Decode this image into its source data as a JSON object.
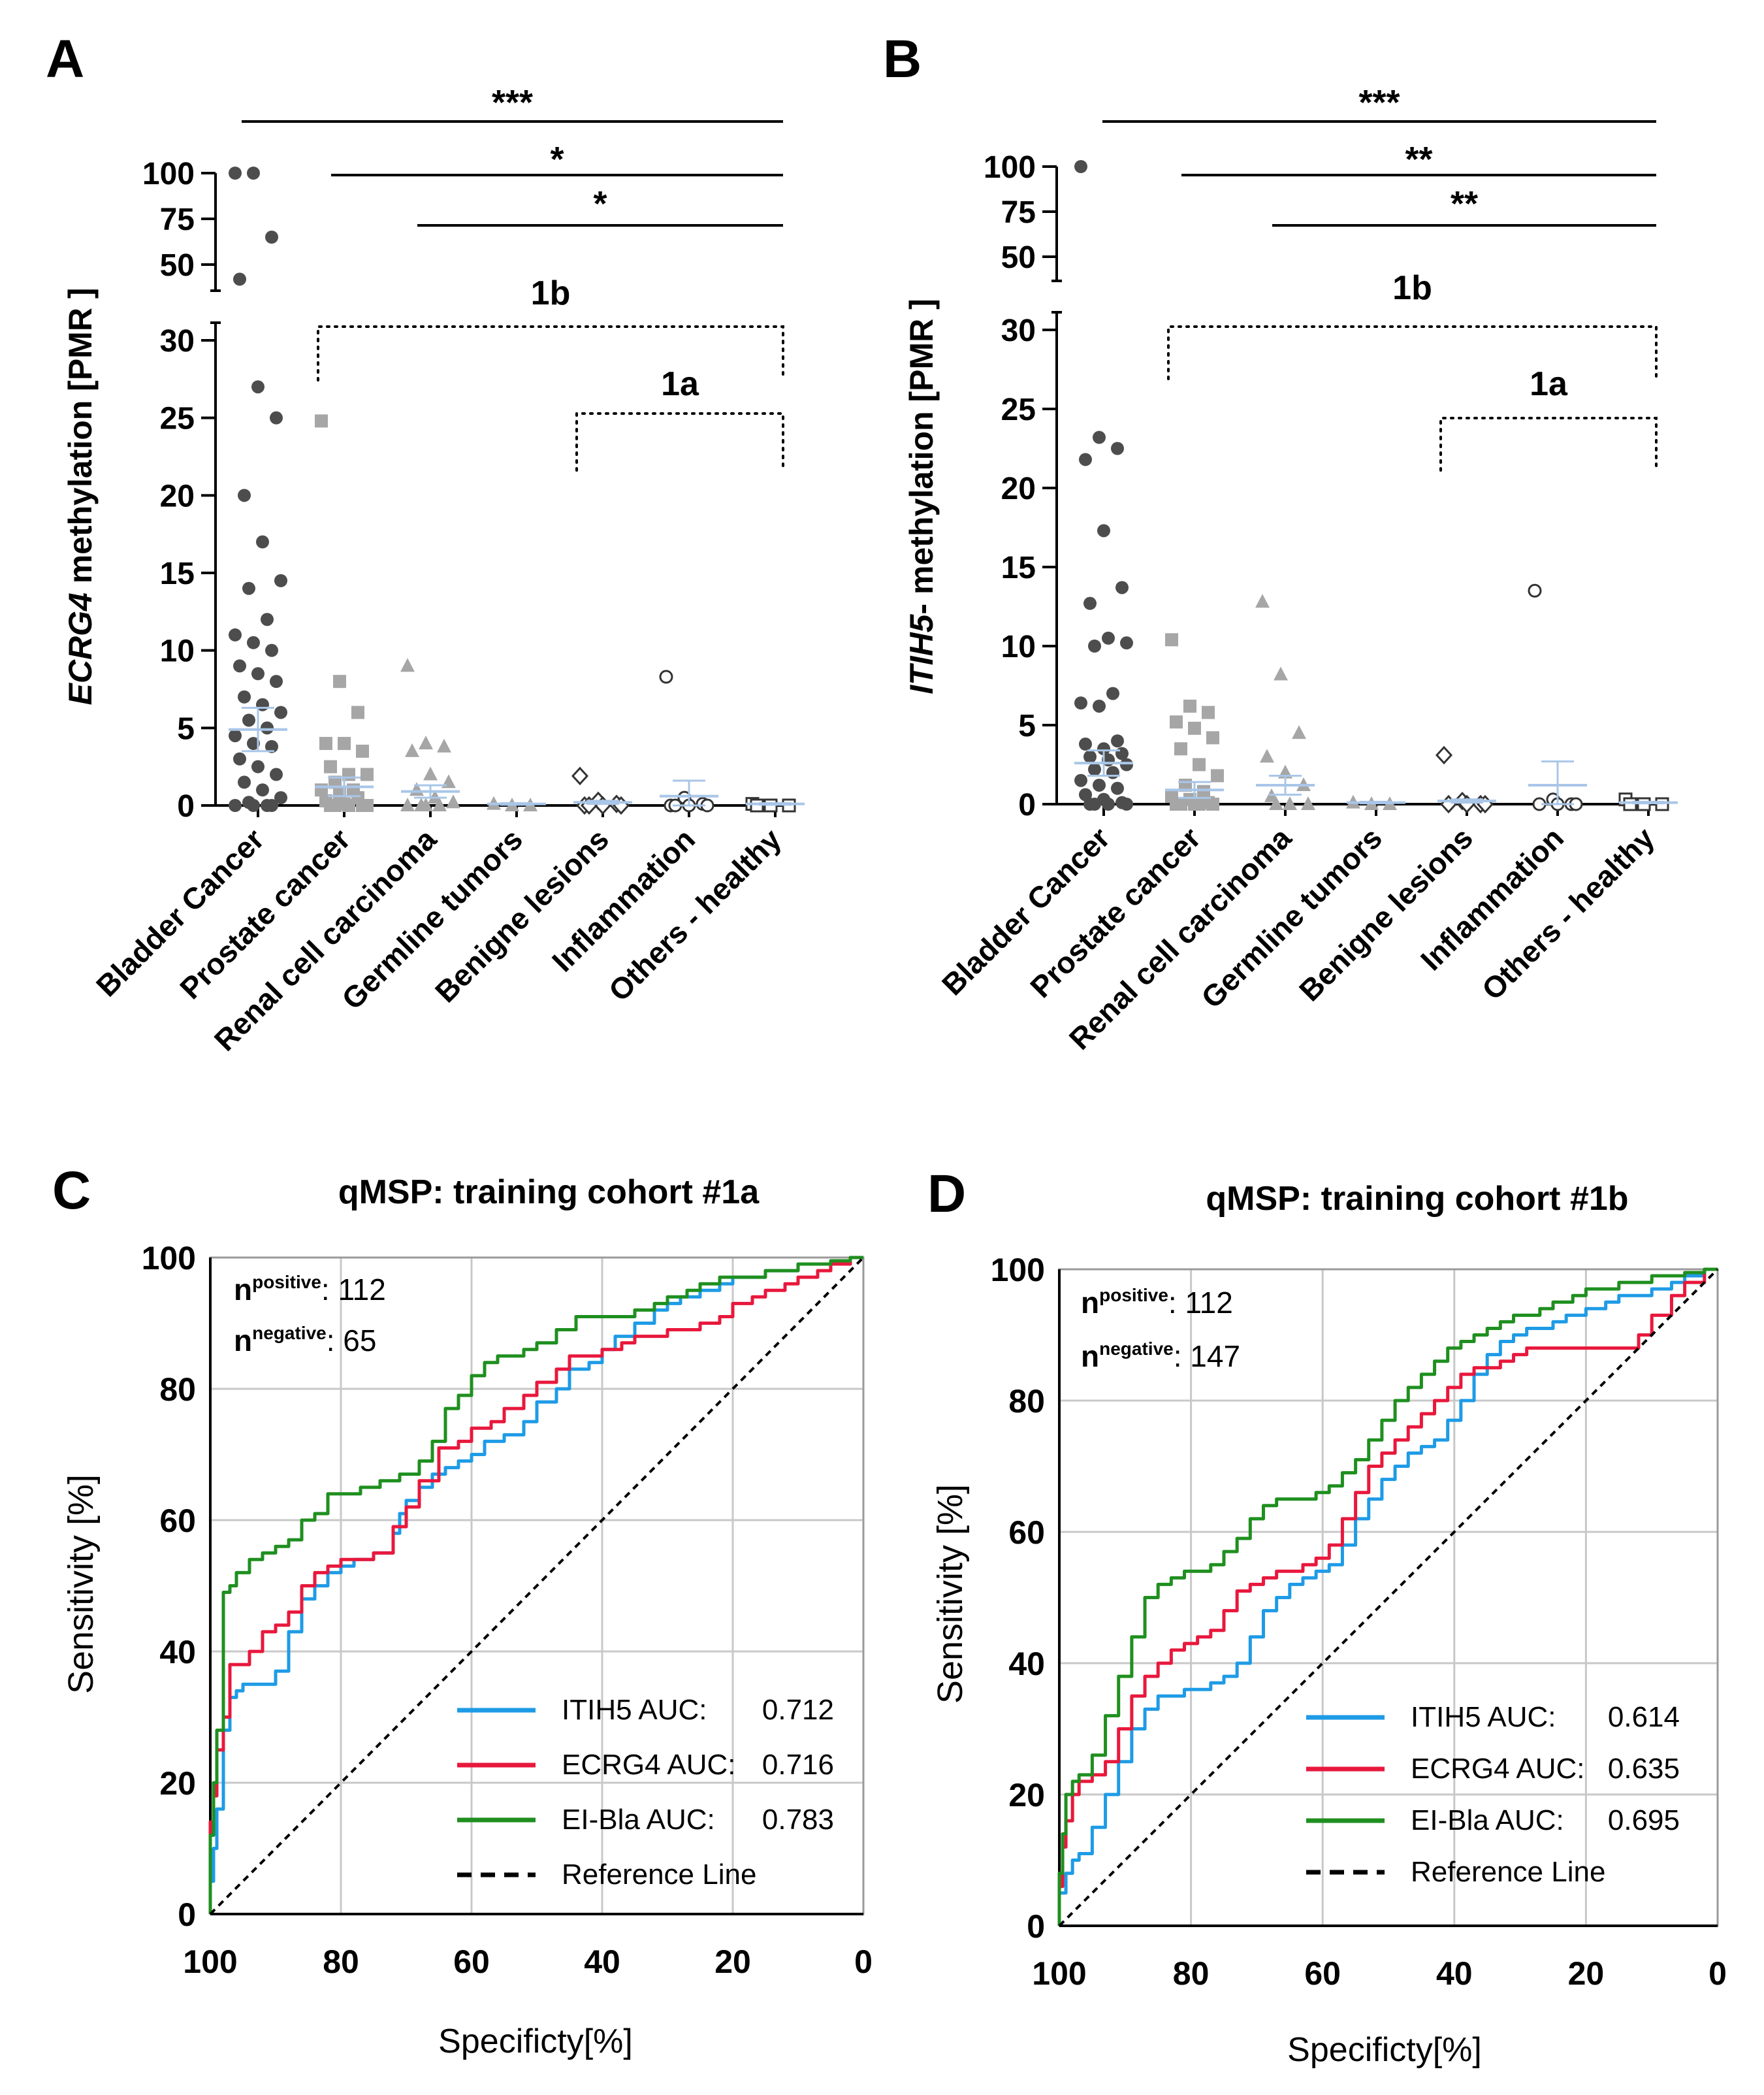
{
  "colors": {
    "axis": "#000000",
    "bladder": "#4d4d4d",
    "gray": "#a6a6a6",
    "mean": "#a9c6e8",
    "grid": "#c8c8c8",
    "itih5": "#1e9be6",
    "ecrg4": "#e8183c",
    "elbla": "#1f8f1f",
    "ref": "#000000"
  },
  "chart_data": [
    {
      "panel": "A",
      "type": "scatter",
      "ylabel_italic": "ECRG4",
      "ylabel_rest": " methylation [PMR ]",
      "categories": [
        "Bladder Cancer",
        "Prostate cancer",
        "Renal cell carcinoma",
        "Germline tumors",
        "Benigne lesions",
        "Inflammation",
        "Others - healthy"
      ],
      "yticks_low": [
        "0",
        "5",
        "10",
        "15",
        "20",
        "25",
        "30"
      ],
      "yticks_high": [
        "50",
        "75",
        "100"
      ],
      "significance": [
        {
          "label": "***",
          "from": 0,
          "to": 6
        },
        {
          "label": "*",
          "from": 1,
          "to": 6
        },
        {
          "label": "*",
          "from": 2,
          "to": 6
        }
      ],
      "cohorts": [
        {
          "label": "1b",
          "from": 1,
          "to": 6
        },
        {
          "label": "1a",
          "from": 4,
          "to": 6
        }
      ],
      "markers": [
        "circle",
        "square",
        "triangle",
        "triangle",
        "diamond",
        "open-circle",
        "open-square"
      ],
      "means": [
        4.9,
        1.2,
        0.9,
        0.1,
        0.2,
        0.6,
        0.1
      ],
      "sems": [
        1.4,
        0.6,
        0.4,
        0.05,
        0.1,
        1.0,
        0.05
      ],
      "points": [
        [
          100,
          100,
          65,
          42,
          27,
          25,
          20,
          17,
          14.5,
          14,
          12,
          11,
          10.5,
          10,
          9,
          8.5,
          8,
          7,
          6.5,
          6,
          5.5,
          5,
          4.5,
          4,
          3.8,
          3,
          2.5,
          2,
          1.5,
          1,
          0.5,
          0.2,
          0,
          0,
          0,
          0
        ],
        [
          24.8,
          8,
          6,
          4,
          4,
          3.5,
          2.5,
          2,
          2,
          1.5,
          1,
          1,
          0.8,
          0.5,
          0.3,
          0.1,
          0,
          0,
          0,
          0,
          0
        ],
        [
          9,
          4,
          3.8,
          3.5,
          2,
          1.5,
          1,
          0.5,
          0.2,
          0,
          0,
          0,
          0
        ],
        [
          0.1,
          0,
          0
        ],
        [
          1.9,
          0.3,
          0.1,
          0,
          0,
          0,
          0
        ],
        [
          8.3,
          0.5,
          0.1,
          0,
          0,
          0,
          0
        ],
        [
          0.1,
          0,
          0,
          0
        ]
      ]
    },
    {
      "panel": "B",
      "type": "scatter",
      "ylabel_italic": "ITIH5",
      "ylabel_rest": "- methylation [PMR ]",
      "categories": [
        "Bladder Cancer",
        "Prostate cancer",
        "Renal cell carcinoma",
        "Germline tumors",
        "Benigne lesions",
        "Inflammation",
        "Others - healthy"
      ],
      "yticks_low": [
        "0",
        "5",
        "10",
        "15",
        "20",
        "25",
        "30"
      ],
      "yticks_high": [
        "50",
        "75",
        "100"
      ],
      "significance": [
        {
          "label": "***",
          "from": 0,
          "to": 6
        },
        {
          "label": "**",
          "from": 1,
          "to": 6
        },
        {
          "label": "**",
          "from": 2,
          "to": 6
        }
      ],
      "cohorts": [
        {
          "label": "1b",
          "from": 1,
          "to": 6
        },
        {
          "label": "1a",
          "from": 4,
          "to": 6
        }
      ],
      "markers": [
        "circle",
        "square",
        "triangle",
        "triangle",
        "diamond",
        "open-circle",
        "open-square"
      ],
      "means": [
        2.6,
        0.9,
        1.2,
        0.1,
        0.2,
        1.2,
        0.1
      ],
      "sems": [
        0.8,
        0.5,
        0.6,
        0.05,
        0.1,
        1.5,
        0.05
      ],
      "points": [
        [
          100,
          23.2,
          22.5,
          21.8,
          17.3,
          13.7,
          12.7,
          10.5,
          10.2,
          10,
          7,
          6.4,
          6.2,
          4,
          3.8,
          3.5,
          3.2,
          3,
          2.8,
          2.5,
          2.2,
          2,
          1.5,
          1.2,
          1,
          0.6,
          0.3,
          0.1,
          0,
          0,
          0,
          0
        ],
        [
          10.4,
          6.2,
          5.8,
          5.2,
          4.8,
          4.2,
          3.5,
          2.5,
          1.8,
          1.2,
          0.8,
          0.5,
          0.3,
          0.1,
          0,
          0,
          0,
          0,
          0
        ],
        [
          12.8,
          8.2,
          4.5,
          3,
          2,
          1.2,
          0.5,
          0,
          0,
          0
        ],
        [
          0.1,
          0,
          0
        ],
        [
          3.1,
          0.2,
          0,
          0,
          0,
          0
        ],
        [
          13.5,
          0.3,
          0,
          0,
          0,
          0
        ],
        [
          0.3,
          0,
          0,
          0
        ]
      ]
    },
    {
      "panel": "C",
      "type": "line",
      "title": "qMSP: training cohort #1a",
      "xlabel": "Specificty[%]",
      "ylabel": "Sensitivity [%]",
      "xlim": [
        100,
        0
      ],
      "ylim": [
        0,
        100
      ],
      "xticks": [
        "100",
        "80",
        "60",
        "40",
        "20",
        "0"
      ],
      "yticks": [
        "0",
        "20",
        "40",
        "60",
        "80",
        "100"
      ],
      "n_positive": ": 112",
      "n_negative": ": 65",
      "sup_pos": "positive",
      "sup_neg": "negative",
      "series": [
        {
          "name": "ITIH5 AUC:",
          "auc": "0.712",
          "color_key": "itih5",
          "x": [
            100,
            99.5,
            99,
            98,
            97,
            96,
            95,
            93,
            90,
            88,
            86,
            84,
            82,
            80,
            78,
            75,
            72,
            71,
            70,
            68,
            66,
            64,
            62,
            60,
            58,
            55,
            52,
            50,
            47,
            45,
            42,
            40,
            38,
            35,
            32,
            30,
            28,
            25,
            22,
            20,
            17,
            15,
            12,
            10,
            7,
            5,
            2,
            0
          ],
          "y": [
            0,
            5,
            10,
            16,
            28,
            33,
            34,
            35,
            35,
            37,
            43,
            48,
            50,
            52,
            53,
            54,
            55,
            58,
            61,
            63,
            65,
            67,
            68,
            69,
            70,
            72,
            73,
            75,
            78,
            80,
            83,
            84,
            86,
            88,
            90,
            92,
            93,
            94,
            95,
            96,
            97,
            97,
            98,
            98,
            99,
            99,
            99.5,
            100
          ]
        },
        {
          "name": "ECRG4 AUC:",
          "auc": "0.716",
          "color_key": "ecrg4",
          "x": [
            100,
            99.5,
            99,
            98,
            97,
            96,
            94,
            92,
            90,
            88,
            86,
            84,
            82,
            80,
            78,
            75,
            72,
            70,
            68,
            65,
            62,
            60,
            57,
            55,
            52,
            50,
            47,
            45,
            42,
            40,
            37,
            35,
            32,
            30,
            27,
            25,
            22,
            20,
            17,
            15,
            12,
            10,
            7,
            5,
            2,
            0
          ],
          "y": [
            0,
            14,
            18,
            25,
            30,
            38,
            38,
            40,
            43,
            44,
            46,
            50,
            52,
            53,
            54,
            54,
            55,
            59,
            62,
            66,
            71,
            72,
            74,
            75,
            77,
            79,
            81,
            83,
            85,
            85,
            86,
            87,
            88,
            88,
            89,
            89,
            90,
            91,
            93,
            94,
            95,
            96,
            97,
            98,
            99,
            100
          ]
        },
        {
          "name": "EI-Bla AUC:",
          "auc": "0.783",
          "color_key": "elbla",
          "x": [
            100,
            99.5,
            99,
            98,
            97,
            96,
            94,
            92,
            90,
            88,
            86,
            84,
            82,
            80,
            77,
            74,
            71,
            68,
            66,
            64,
            62,
            60,
            58,
            56,
            54,
            52,
            50,
            47,
            44,
            42,
            40,
            37,
            35,
            32,
            30,
            27,
            25,
            22,
            20,
            17,
            15,
            12,
            10,
            7,
            5,
            2,
            0
          ],
          "y": [
            0,
            12,
            20,
            28,
            49,
            50,
            52,
            54,
            55,
            56,
            57,
            60,
            61,
            64,
            64,
            65,
            66,
            67,
            69,
            72,
            77,
            79,
            82,
            84,
            85,
            85,
            86,
            87,
            89,
            91,
            91,
            91,
            91,
            92,
            93,
            94,
            95,
            96,
            97,
            97,
            97,
            98,
            98,
            99,
            99,
            99.5,
            100
          ]
        },
        {
          "name": "Reference Line",
          "auc": "",
          "color_key": "ref",
          "dashed": true,
          "x": [
            100,
            0
          ],
          "y": [
            0,
            100
          ]
        }
      ]
    },
    {
      "panel": "D",
      "type": "line",
      "title": "qMSP: training cohort #1b",
      "xlabel": "Specificty[%]",
      "ylabel": "Sensitivity [%]",
      "xlim": [
        100,
        0
      ],
      "ylim": [
        0,
        100
      ],
      "xticks": [
        "100",
        "80",
        "60",
        "40",
        "20",
        "0"
      ],
      "yticks": [
        "0",
        "20",
        "40",
        "60",
        "80",
        "100"
      ],
      "n_positive": ": 112",
      "n_negative": ": 147",
      "sup_pos": "positive",
      "sup_neg": "negative",
      "series": [
        {
          "name": "ITIH5 AUC:",
          "auc": "0.614",
          "color_key": "itih5",
          "x": [
            100,
            99,
            98,
            97,
            95,
            93,
            91,
            89,
            87,
            85,
            83,
            81,
            79,
            77,
            75,
            73,
            71,
            69,
            67,
            65,
            63,
            61,
            59,
            57,
            55,
            53,
            51,
            49,
            47,
            45,
            43,
            41,
            39,
            37,
            35,
            33,
            31,
            29,
            27,
            25,
            23,
            20,
            17,
            15,
            12,
            10,
            7,
            5,
            2,
            0
          ],
          "y": [
            0,
            5,
            8,
            10,
            11,
            15,
            20,
            25,
            30,
            33,
            35,
            35,
            36,
            36,
            37,
            38,
            40,
            44,
            48,
            50,
            52,
            53,
            54,
            55,
            58,
            62,
            65,
            68,
            70,
            72,
            73,
            74,
            77,
            80,
            84,
            87,
            89,
            90,
            91,
            91,
            92,
            93,
            94,
            95,
            96,
            96,
            97,
            98,
            99,
            100
          ]
        },
        {
          "name": "ECRG4 AUC:",
          "auc": "0.635",
          "color_key": "ecrg4",
          "x": [
            100,
            99.5,
            99,
            98,
            97,
            95,
            93,
            91,
            89,
            87,
            85,
            83,
            81,
            79,
            77,
            75,
            73,
            71,
            69,
            67,
            65,
            63,
            61,
            59,
            57,
            55,
            53,
            51,
            49,
            47,
            45,
            43,
            41,
            39,
            37,
            35,
            33,
            31,
            29,
            27,
            25,
            22,
            20,
            17,
            15,
            12,
            10,
            7,
            5,
            2,
            0
          ],
          "y": [
            0,
            6,
            12,
            16,
            20,
            22,
            23,
            25,
            30,
            35,
            38,
            40,
            42,
            43,
            44,
            45,
            48,
            51,
            52,
            53,
            54,
            54,
            55,
            56,
            58,
            62,
            66,
            70,
            72,
            74,
            76,
            78,
            80,
            82,
            84,
            85,
            85,
            86,
            87,
            88,
            88,
            88,
            88,
            88,
            88,
            88,
            90,
            93,
            96,
            98,
            100
          ]
        },
        {
          "name": "EI-Bla AUC:",
          "auc": "0.695",
          "color_key": "elbla",
          "x": [
            100,
            99.5,
            99,
            98,
            97,
            95,
            93,
            91,
            89,
            87,
            85,
            83,
            81,
            79,
            77,
            75,
            73,
            71,
            69,
            67,
            65,
            63,
            61,
            59,
            57,
            55,
            53,
            51,
            49,
            47,
            45,
            43,
            41,
            39,
            37,
            35,
            33,
            31,
            29,
            27,
            25,
            22,
            20,
            17,
            15,
            12,
            10,
            7,
            5,
            2,
            0
          ],
          "y": [
            0,
            8,
            14,
            20,
            22,
            23,
            26,
            32,
            38,
            44,
            50,
            52,
            53,
            54,
            54,
            55,
            57,
            59,
            62,
            64,
            65,
            65,
            65,
            66,
            67,
            69,
            71,
            74,
            77,
            80,
            82,
            84,
            86,
            88,
            89,
            90,
            91,
            92,
            93,
            93,
            94,
            95,
            96,
            97,
            97,
            98,
            98,
            99,
            99,
            99.5,
            100
          ]
        },
        {
          "name": "Reference Line",
          "auc": "",
          "color_key": "ref",
          "dashed": true,
          "x": [
            100,
            0
          ],
          "y": [
            0,
            100
          ]
        }
      ]
    }
  ]
}
